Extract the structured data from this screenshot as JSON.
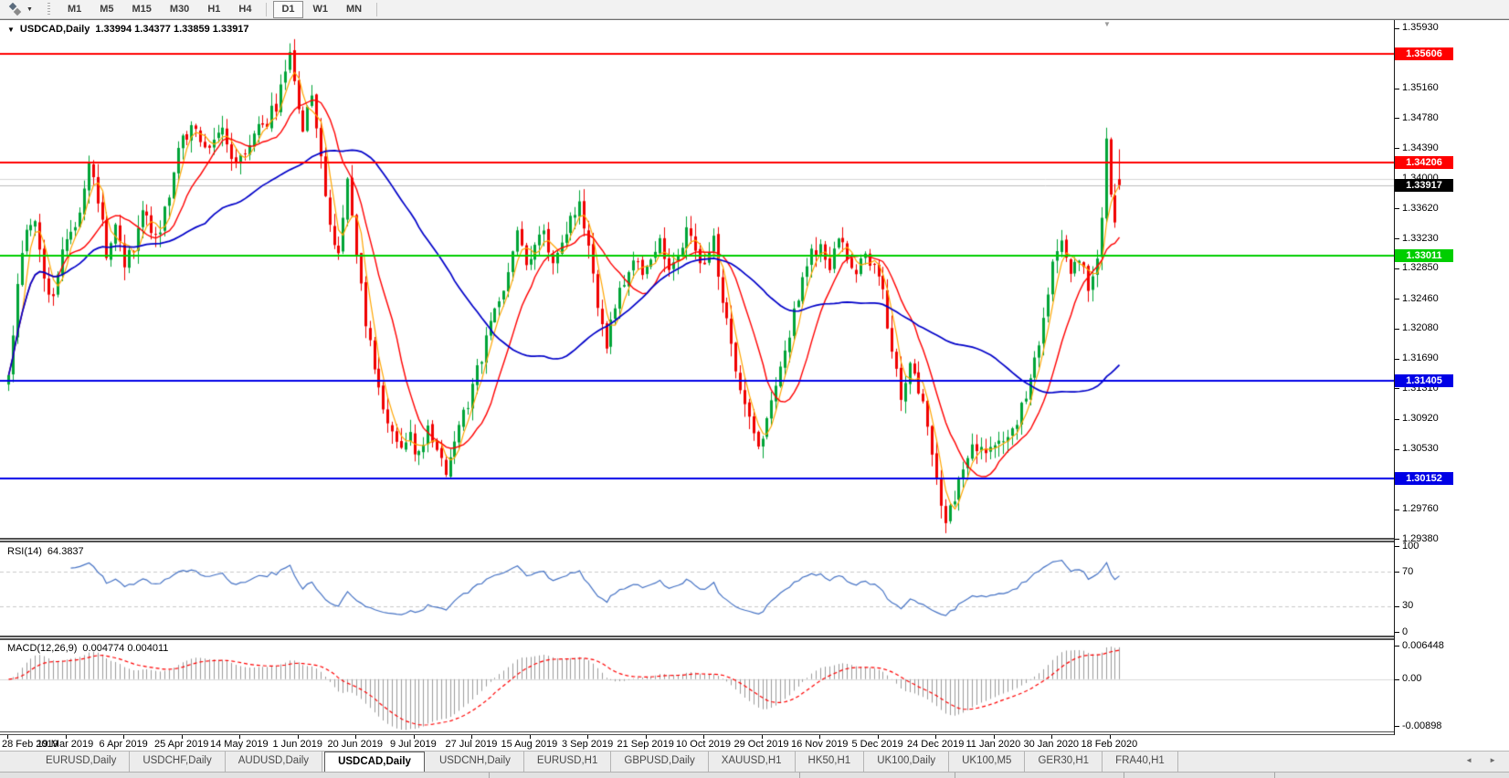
{
  "toolbar": {
    "tf_group1": [
      {
        "label": "M1"
      },
      {
        "label": "M5"
      },
      {
        "label": "M15"
      },
      {
        "label": "M30"
      },
      {
        "label": "H1"
      },
      {
        "label": "H4"
      }
    ],
    "tf_group2": [
      {
        "label": "D1",
        "active": true
      },
      {
        "label": "W1"
      },
      {
        "label": "MN"
      }
    ]
  },
  "icons": {
    "caret_down": "▼",
    "symbol_caret": "▼",
    "shift_marker": "▼",
    "tab_prev": "◄",
    "tab_next": "►"
  },
  "chart": {
    "symbol_label": "USDCAD,Daily",
    "ohlc": "1.33994 1.34377 1.33859 1.33917",
    "rsi_label": "RSI(14)",
    "rsi_value": "64.3837",
    "macd_label": "MACD(12,26,9)",
    "macd_values": "0.004774 0.004011"
  },
  "chart_data": {
    "type": "candlestick",
    "symbol": "USDCAD",
    "timeframe": "Daily",
    "current_ohlc": {
      "open": 1.33994,
      "high": 1.34377,
      "low": 1.33859,
      "close": 1.33917
    },
    "y_axis": {
      "price_top": 1.36035,
      "price_bottom": 1.29392,
      "ticks": [
        "1.35930",
        "1.35550",
        "1.35160",
        "1.34780",
        "1.34390",
        "1.34000",
        "1.33620",
        "1.33230",
        "1.32850",
        "1.32460",
        "1.32080",
        "1.31690",
        "1.31310",
        "1.30920",
        "1.30530",
        "1.30140",
        "1.29760",
        "1.29380"
      ]
    },
    "x_axis": {
      "dates": [
        "28 Feb 2019",
        "19 Mar 2019",
        "6 Apr 2019",
        "25 Apr 2019",
        "14 May 2019",
        "1 Jun 2019",
        "20 Jun 2019",
        "9 Jul 2019",
        "27 Jul 2019",
        "15 Aug 2019",
        "3 Sep 2019",
        "21 Sep 2019",
        "10 Oct 2019",
        "29 Oct 2019",
        "16 Nov 2019",
        "5 Dec 2019",
        "24 Dec 2019",
        "11 Jan 2020",
        "30 Jan 2020",
        "18 Feb 2020"
      ],
      "bars_per_tick": 13
    },
    "hlines": [
      {
        "price": 1.35606,
        "label": "1.35606",
        "color": "#ff0000",
        "width": 2
      },
      {
        "price": 1.34206,
        "label": "1.34206",
        "color": "#ff0000",
        "width": 2
      },
      {
        "price": 1.33011,
        "label": "1.33011",
        "color": "#00ce00",
        "width": 2
      },
      {
        "price": 1.31405,
        "label": "1.31405",
        "color": "#0000e6",
        "width": 2
      },
      {
        "price": 1.30152,
        "label": "1.30152",
        "color": "#0000e6",
        "width": 2
      }
    ],
    "gridline_price": 1.34,
    "current_price": {
      "value": 1.33917,
      "label": "1.33917",
      "badge_color": "#000000",
      "line_color": "#bcbcbc"
    },
    "candles": {
      "count": 250,
      "up_color": "#00a437",
      "down_color": "#f00000",
      "anchors": [
        [
          0,
          1.3148
        ],
        [
          2,
          1.3265
        ],
        [
          4,
          1.3338
        ],
        [
          6,
          1.3346
        ],
        [
          8,
          1.3272
        ],
        [
          10,
          1.3242
        ],
        [
          12,
          1.3312
        ],
        [
          14,
          1.333
        ],
        [
          16,
          1.3352
        ],
        [
          18,
          1.3425
        ],
        [
          20,
          1.3372
        ],
        [
          22,
          1.3305
        ],
        [
          24,
          1.3332
        ],
        [
          26,
          1.3288
        ],
        [
          28,
          1.3312
        ],
        [
          30,
          1.336
        ],
        [
          32,
          1.3336
        ],
        [
          34,
          1.333
        ],
        [
          36,
          1.3382
        ],
        [
          38,
          1.344
        ],
        [
          40,
          1.3456
        ],
        [
          42,
          1.347
        ],
        [
          44,
          1.3432
        ],
        [
          46,
          1.3452
        ],
        [
          48,
          1.3464
        ],
        [
          50,
          1.3432
        ],
        [
          52,
          1.3422
        ],
        [
          54,
          1.3446
        ],
        [
          56,
          1.3462
        ],
        [
          58,
          1.3476
        ],
        [
          60,
          1.3492
        ],
        [
          62,
          1.3542
        ],
        [
          63,
          1.3556
        ],
        [
          64,
          1.3532
        ],
        [
          66,
          1.3466
        ],
        [
          68,
          1.351
        ],
        [
          70,
          1.342
        ],
        [
          72,
          1.3346
        ],
        [
          74,
          1.3302
        ],
        [
          76,
          1.3392
        ],
        [
          78,
          1.3312
        ],
        [
          80,
          1.3212
        ],
        [
          82,
          1.3162
        ],
        [
          84,
          1.3112
        ],
        [
          86,
          1.3076
        ],
        [
          88,
          1.3052
        ],
        [
          90,
          1.3066
        ],
        [
          92,
          1.3046
        ],
        [
          94,
          1.3086
        ],
        [
          96,
          1.3052
        ],
        [
          98,
          1.3022
        ],
        [
          100,
          1.3062
        ],
        [
          102,
          1.3096
        ],
        [
          104,
          1.3132
        ],
        [
          106,
          1.3172
        ],
        [
          108,
          1.3216
        ],
        [
          110,
          1.3236
        ],
        [
          112,
          1.3282
        ],
        [
          114,
          1.3326
        ],
        [
          116,
          1.3292
        ],
        [
          118,
          1.3316
        ],
        [
          120,
          1.3336
        ],
        [
          122,
          1.3292
        ],
        [
          124,
          1.3316
        ],
        [
          126,
          1.3346
        ],
        [
          128,
          1.3362
        ],
        [
          130,
          1.3312
        ],
        [
          132,
          1.3232
        ],
        [
          134,
          1.3192
        ],
        [
          136,
          1.3236
        ],
        [
          138,
          1.3272
        ],
        [
          140,
          1.3296
        ],
        [
          142,
          1.3272
        ],
        [
          144,
          1.3296
        ],
        [
          146,
          1.3316
        ],
        [
          148,
          1.3286
        ],
        [
          150,
          1.3296
        ],
        [
          152,
          1.3336
        ],
        [
          154,
          1.3312
        ],
        [
          156,
          1.3286
        ],
        [
          158,
          1.3322
        ],
        [
          160,
          1.3246
        ],
        [
          162,
          1.3186
        ],
        [
          164,
          1.3132
        ],
        [
          166,
          1.3092
        ],
        [
          168,
          1.3062
        ],
        [
          170,
          1.3086
        ],
        [
          172,
          1.3132
        ],
        [
          174,
          1.3176
        ],
        [
          176,
          1.3226
        ],
        [
          178,
          1.3272
        ],
        [
          180,
          1.3302
        ],
        [
          182,
          1.3312
        ],
        [
          184,
          1.3292
        ],
        [
          186,
          1.3322
        ],
        [
          188,
          1.3302
        ],
        [
          190,
          1.3286
        ],
        [
          192,
          1.3302
        ],
        [
          194,
          1.3282
        ],
        [
          196,
          1.3252
        ],
        [
          198,
          1.3172
        ],
        [
          200,
          1.3126
        ],
        [
          202,
          1.3162
        ],
        [
          204,
          1.3132
        ],
        [
          206,
          1.3082
        ],
        [
          208,
          1.3012
        ],
        [
          210,
          1.2962
        ],
        [
          212,
          1.2992
        ],
        [
          214,
          1.3036
        ],
        [
          216,
          1.3062
        ],
        [
          218,
          1.3052
        ],
        [
          220,
          1.3046
        ],
        [
          222,
          1.3062
        ],
        [
          224,
          1.3072
        ],
        [
          226,
          1.3092
        ],
        [
          228,
          1.3122
        ],
        [
          230,
          1.3162
        ],
        [
          232,
          1.3222
        ],
        [
          234,
          1.3292
        ],
        [
          236,
          1.3312
        ],
        [
          238,
          1.3282
        ],
        [
          240,
          1.3296
        ],
        [
          242,
          1.3266
        ],
        [
          244,
          1.3302
        ],
        [
          245,
          1.3348
        ],
        [
          246,
          1.3455
        ],
        [
          247,
          1.3382
        ],
        [
          248,
          1.3348
        ],
        [
          249,
          1.33917
        ]
      ],
      "forced_extremes": [
        {
          "i": 63,
          "high": 1.356
        },
        {
          "i": 210,
          "low": 1.2953
        },
        {
          "i": 246,
          "high": 1.3465
        }
      ]
    },
    "moving_averages": [
      {
        "period": 4,
        "color": "#ffa500",
        "width": 1.2
      },
      {
        "period": 12,
        "color": "#ff0000",
        "width": 1.4
      },
      {
        "period": 45,
        "color": "#0000c8",
        "width": 1.7
      }
    ],
    "rsi": {
      "period": 14,
      "color": "#4572c4",
      "value": "64.3837",
      "axis": [
        {
          "v": 100,
          "label": "100"
        },
        {
          "v": 70,
          "label": "70",
          "dashed": true
        },
        {
          "v": 30,
          "label": "30",
          "dashed": true
        },
        {
          "v": 0,
          "label": "0"
        }
      ]
    },
    "macd": {
      "fast": 12,
      "slow": 26,
      "signal": 9,
      "histogram_color": "#9b9b9b",
      "signal_color": "#ff0000",
      "axis_max": 0.006448,
      "axis_min": -0.00898,
      "axis": [
        {
          "v": 0.006448,
          "label": "0.006448"
        },
        {
          "v": 0,
          "label": "0.00"
        },
        {
          "v": -0.00898,
          "label": "-0.00898"
        }
      ],
      "current_values": [
        0.004774,
        0.004011
      ]
    }
  },
  "tabs": {
    "items": [
      {
        "label": "EURUSD,Daily"
      },
      {
        "label": "USDCHF,Daily"
      },
      {
        "label": "AUDUSD,Daily"
      },
      {
        "label": "USDCAD,Daily",
        "active": true
      },
      {
        "label": "USDCNH,Daily"
      },
      {
        "label": "EURUSD,H1"
      },
      {
        "label": "GBPUSD,Daily"
      },
      {
        "label": "XAUUSD,H1"
      },
      {
        "label": "HK50,H1"
      },
      {
        "label": "UK100,Daily"
      },
      {
        "label": "UK100,M5"
      },
      {
        "label": "GER30,H1"
      },
      {
        "label": "FRA40,H1"
      }
    ]
  }
}
